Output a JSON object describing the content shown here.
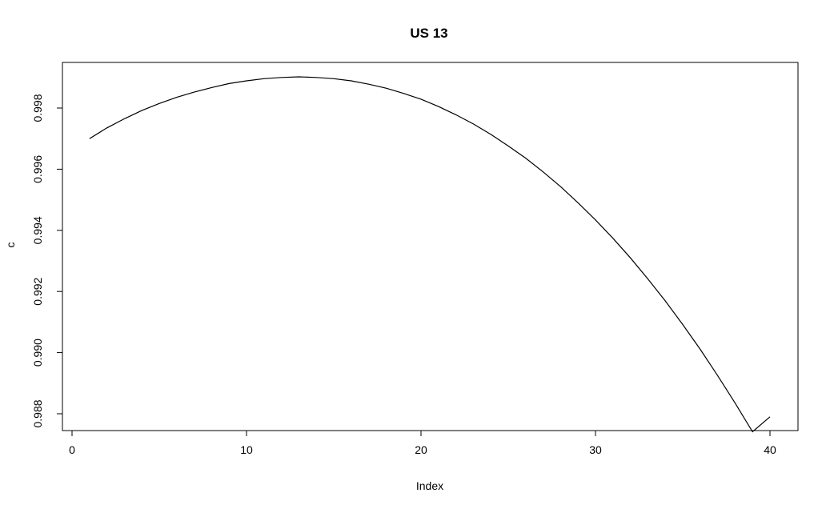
{
  "chart_data": {
    "type": "line",
    "title": "US 13",
    "xlabel": "Index",
    "ylabel": "c",
    "xlim": [
      0,
      40
    ],
    "ylim": [
      0.9879,
      0.9991
    ],
    "x_ticks": [
      0,
      10,
      20,
      30,
      40
    ],
    "x_tick_labels": [
      "0",
      "10",
      "20",
      "30",
      "40"
    ],
    "y_ticks": [
      0.988,
      0.99,
      0.992,
      0.994,
      0.996,
      0.998
    ],
    "y_tick_labels": [
      "0.988",
      "0.990",
      "0.992",
      "0.994",
      "0.996",
      "0.998"
    ],
    "grid": false,
    "series": [
      {
        "color": "#000000",
        "x": [
          1,
          2,
          3,
          4,
          5,
          6,
          7,
          8,
          9,
          10,
          11,
          12,
          13,
          14,
          15,
          16,
          17,
          18,
          19,
          20,
          21,
          22,
          23,
          24,
          25,
          26,
          27,
          28,
          29,
          30,
          31,
          32,
          33,
          34,
          35,
          36,
          37,
          38,
          39,
          40
        ],
        "values": [
          0.997,
          0.99735,
          0.99765,
          0.99792,
          0.99815,
          0.99835,
          0.99852,
          0.99867,
          0.9988,
          0.99889,
          0.99896,
          0.999,
          0.99902,
          0.999,
          0.99896,
          0.99889,
          0.99878,
          0.99865,
          0.99848,
          0.99829,
          0.99805,
          0.99778,
          0.99748,
          0.99714,
          0.99676,
          0.99636,
          0.99591,
          0.99543,
          0.9949,
          0.99434,
          0.99374,
          0.9931,
          0.99241,
          0.99169,
          0.99092,
          0.99011,
          0.98925,
          0.98835,
          0.98741,
          0.9879
        ]
      }
    ]
  }
}
